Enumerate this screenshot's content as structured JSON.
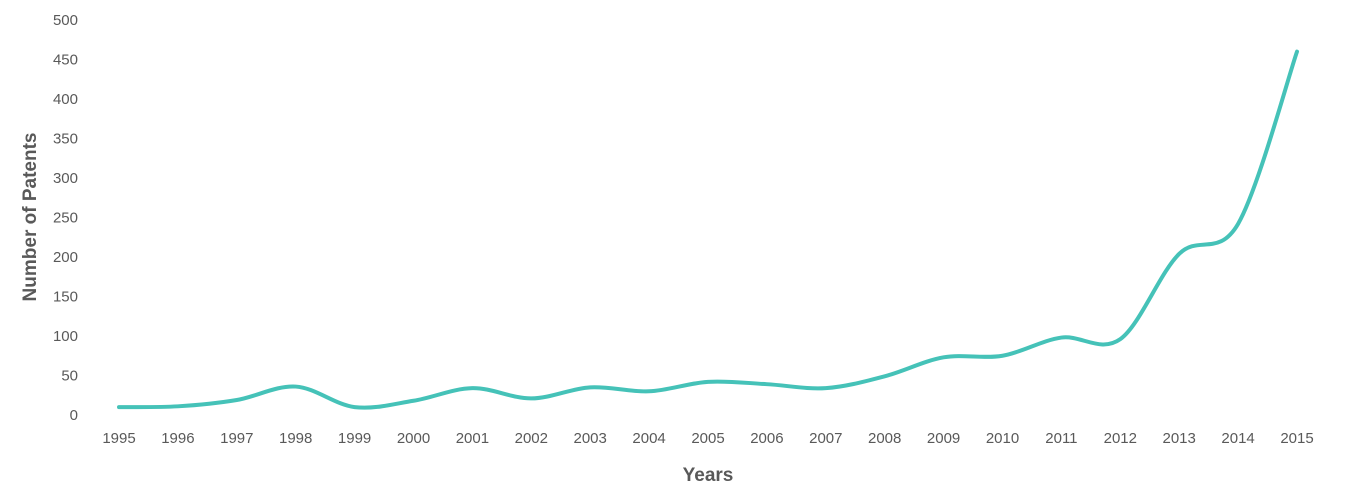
{
  "chart_data": {
    "type": "line",
    "title": "",
    "xlabel": "Years",
    "ylabel": "Number of Patents",
    "x": [
      "1995",
      "1996",
      "1997",
      "1998",
      "1999",
      "2000",
      "2001",
      "2002",
      "2003",
      "2004",
      "2005",
      "2006",
      "2007",
      "2008",
      "2009",
      "2010",
      "2011",
      "2012",
      "2013",
      "2014",
      "2015"
    ],
    "series": [
      {
        "values": [
          10,
          11,
          19,
          36,
          10,
          18,
          34,
          21,
          35,
          30,
          42,
          39,
          34,
          49,
          73,
          75,
          98,
          96,
          204,
          242,
          460
        ],
        "color": "#45c2b8"
      }
    ],
    "ylim": [
      0,
      500
    ],
    "yticks": [
      0,
      50,
      100,
      150,
      200,
      250,
      300,
      350,
      400,
      450,
      500
    ],
    "grid": false,
    "legend": "none"
  }
}
